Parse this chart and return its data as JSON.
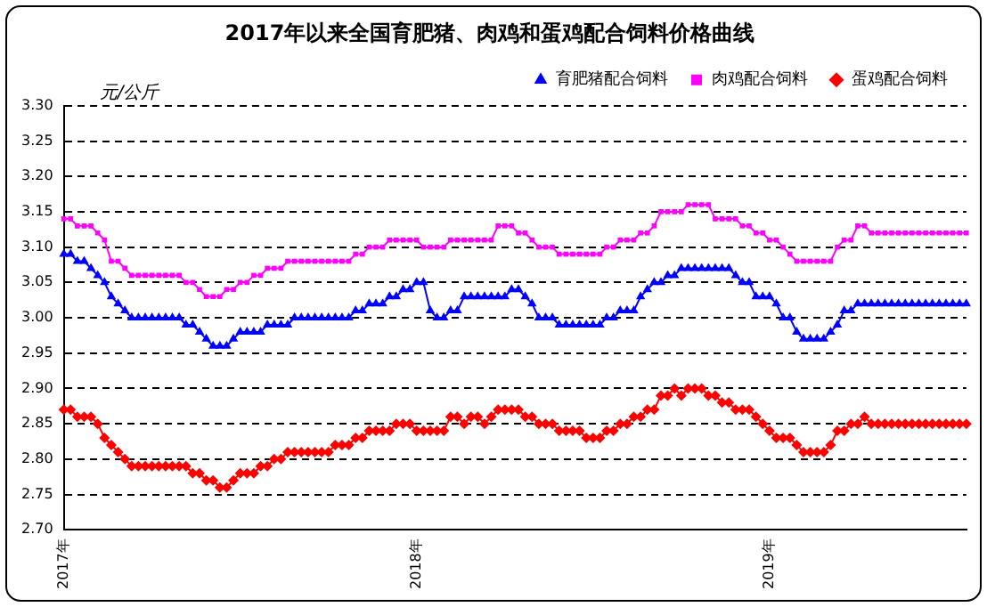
{
  "chart_data": {
    "type": "line",
    "title": "2017年以来全国育肥猪、肉鸡和蛋鸡配合饲料价格曲线",
    "ylabel": "元/公斤",
    "categories": [
      "2017年",
      null,
      null,
      null,
      null,
      null,
      null,
      null,
      null,
      null,
      null,
      null,
      null,
      null,
      null,
      null,
      null,
      null,
      null,
      null,
      null,
      null,
      null,
      null,
      null,
      null,
      null,
      null,
      null,
      null,
      null,
      null,
      null,
      null,
      null,
      null,
      null,
      null,
      null,
      null,
      null,
      null,
      null,
      null,
      null,
      null,
      null,
      null,
      null,
      null,
      null,
      null,
      "2018年",
      null,
      null,
      null,
      null,
      null,
      null,
      null,
      null,
      null,
      null,
      null,
      null,
      null,
      null,
      null,
      null,
      null,
      null,
      null,
      null,
      null,
      null,
      null,
      null,
      null,
      null,
      null,
      null,
      null,
      null,
      null,
      null,
      null,
      null,
      null,
      null,
      null,
      null,
      null,
      null,
      null,
      null,
      null,
      null,
      null,
      null,
      null,
      null,
      null,
      null,
      null,
      "2019年",
      null,
      null,
      null,
      null,
      null,
      null,
      null,
      null,
      null,
      null,
      null,
      null,
      null,
      null,
      null,
      null,
      null,
      null,
      null,
      null,
      null,
      null,
      null,
      null,
      null,
      null,
      null,
      null,
      null
    ],
    "ylim": [
      2.7,
      3.3
    ],
    "yticks": [
      {
        "value": 2.7,
        "label": "2.70"
      },
      {
        "value": 2.75,
        "label": "2.75"
      },
      {
        "value": 2.8,
        "label": "2.80"
      },
      {
        "value": 2.85,
        "label": "2.85"
      },
      {
        "value": 2.9,
        "label": "2.90"
      },
      {
        "value": 2.95,
        "label": "2.95"
      },
      {
        "value": 3.0,
        "label": "3.00"
      },
      {
        "value": 3.05,
        "label": "3.05"
      },
      {
        "value": 3.1,
        "label": "3.10"
      },
      {
        "value": 3.15,
        "label": "3.15"
      },
      {
        "value": 3.2,
        "label": "3.20"
      },
      {
        "value": 3.25,
        "label": "3.25"
      },
      {
        "value": 3.3,
        "label": "3.30"
      }
    ],
    "grid": "y",
    "legend": "top right",
    "line_style": "solid",
    "series": [
      {
        "name": "育肥猪配合饲料",
        "color": "#0000ff",
        "marker": "triangle",
        "values": [
          3.09,
          3.09,
          3.08,
          3.08,
          3.07,
          3.06,
          3.05,
          3.03,
          3.02,
          3.01,
          3.0,
          3.0,
          3.0,
          3.0,
          3.0,
          3.0,
          3.0,
          3.0,
          2.99,
          2.99,
          2.98,
          2.97,
          2.96,
          2.96,
          2.96,
          2.97,
          2.98,
          2.98,
          2.98,
          2.98,
          2.99,
          2.99,
          2.99,
          2.99,
          3.0,
          3.0,
          3.0,
          3.0,
          3.0,
          3.0,
          3.0,
          3.0,
          3.0,
          3.01,
          3.01,
          3.02,
          3.02,
          3.02,
          3.03,
          3.03,
          3.04,
          3.04,
          3.05,
          3.05,
          3.01,
          3.0,
          3.0,
          3.01,
          3.01,
          3.03,
          3.03,
          3.03,
          3.03,
          3.03,
          3.03,
          3.03,
          3.04,
          3.04,
          3.03,
          3.02,
          3.0,
          3.0,
          3.0,
          2.99,
          2.99,
          2.99,
          2.99,
          2.99,
          2.99,
          2.99,
          3.0,
          3.0,
          3.01,
          3.01,
          3.01,
          3.03,
          3.04,
          3.05,
          3.05,
          3.06,
          3.06,
          3.07,
          3.07,
          3.07,
          3.07,
          3.07,
          3.07,
          3.07,
          3.07,
          3.06,
          3.05,
          3.05,
          3.03,
          3.03,
          3.03,
          3.02,
          3.0,
          3.0,
          2.98,
          2.97,
          2.97,
          2.97,
          2.97,
          2.98,
          2.99,
          3.01,
          3.01,
          3.02,
          3.02,
          3.02,
          3.02,
          3.02,
          3.02,
          3.02,
          3.02,
          3.02,
          3.02,
          3.02,
          3.02,
          3.02,
          3.02,
          3.02,
          3.02,
          3.02
        ]
      },
      {
        "name": "肉鸡配合饲料",
        "color": "#ff00ff",
        "marker": "square",
        "values": [
          3.14,
          3.14,
          3.13,
          3.13,
          3.13,
          3.12,
          3.11,
          3.08,
          3.08,
          3.07,
          3.06,
          3.06,
          3.06,
          3.06,
          3.06,
          3.06,
          3.06,
          3.06,
          3.05,
          3.05,
          3.04,
          3.03,
          3.03,
          3.03,
          3.04,
          3.04,
          3.05,
          3.05,
          3.06,
          3.06,
          3.07,
          3.07,
          3.07,
          3.08,
          3.08,
          3.08,
          3.08,
          3.08,
          3.08,
          3.08,
          3.08,
          3.08,
          3.08,
          3.09,
          3.09,
          3.1,
          3.1,
          3.1,
          3.11,
          3.11,
          3.11,
          3.11,
          3.11,
          3.1,
          3.1,
          3.1,
          3.1,
          3.11,
          3.11,
          3.11,
          3.11,
          3.11,
          3.11,
          3.11,
          3.13,
          3.13,
          3.13,
          3.12,
          3.12,
          3.11,
          3.1,
          3.1,
          3.1,
          3.09,
          3.09,
          3.09,
          3.09,
          3.09,
          3.09,
          3.09,
          3.1,
          3.1,
          3.11,
          3.11,
          3.11,
          3.12,
          3.12,
          3.13,
          3.15,
          3.15,
          3.15,
          3.15,
          3.16,
          3.16,
          3.16,
          3.16,
          3.14,
          3.14,
          3.14,
          3.14,
          3.13,
          3.13,
          3.12,
          3.12,
          3.11,
          3.11,
          3.1,
          3.09,
          3.08,
          3.08,
          3.08,
          3.08,
          3.08,
          3.08,
          3.1,
          3.11,
          3.11,
          3.13,
          3.13,
          3.12,
          3.12,
          3.12,
          3.12,
          3.12,
          3.12,
          3.12,
          3.12,
          3.12,
          3.12,
          3.12,
          3.12,
          3.12,
          3.12,
          3.12
        ]
      },
      {
        "name": "蛋鸡配合饲料",
        "color": "#ff0000",
        "marker": "diamond",
        "values": [
          2.87,
          2.87,
          2.86,
          2.86,
          2.86,
          2.85,
          2.83,
          2.82,
          2.81,
          2.8,
          2.79,
          2.79,
          2.79,
          2.79,
          2.79,
          2.79,
          2.79,
          2.79,
          2.79,
          2.78,
          2.78,
          2.77,
          2.77,
          2.76,
          2.76,
          2.77,
          2.78,
          2.78,
          2.78,
          2.79,
          2.79,
          2.8,
          2.8,
          2.81,
          2.81,
          2.81,
          2.81,
          2.81,
          2.81,
          2.81,
          2.82,
          2.82,
          2.82,
          2.83,
          2.83,
          2.84,
          2.84,
          2.84,
          2.84,
          2.85,
          2.85,
          2.85,
          2.84,
          2.84,
          2.84,
          2.84,
          2.84,
          2.86,
          2.86,
          2.85,
          2.86,
          2.86,
          2.85,
          2.86,
          2.87,
          2.87,
          2.87,
          2.87,
          2.86,
          2.86,
          2.85,
          2.85,
          2.85,
          2.84,
          2.84,
          2.84,
          2.84,
          2.83,
          2.83,
          2.83,
          2.84,
          2.84,
          2.85,
          2.85,
          2.86,
          2.86,
          2.87,
          2.87,
          2.89,
          2.89,
          2.9,
          2.89,
          2.9,
          2.9,
          2.9,
          2.89,
          2.89,
          2.88,
          2.88,
          2.87,
          2.87,
          2.87,
          2.86,
          2.85,
          2.84,
          2.83,
          2.83,
          2.83,
          2.82,
          2.81,
          2.81,
          2.81,
          2.81,
          2.82,
          2.84,
          2.84,
          2.85,
          2.85,
          2.86,
          2.85,
          2.85,
          2.85,
          2.85,
          2.85,
          2.85,
          2.85,
          2.85,
          2.85,
          2.85,
          2.85,
          2.85,
          2.85,
          2.85,
          2.85
        ]
      }
    ]
  }
}
